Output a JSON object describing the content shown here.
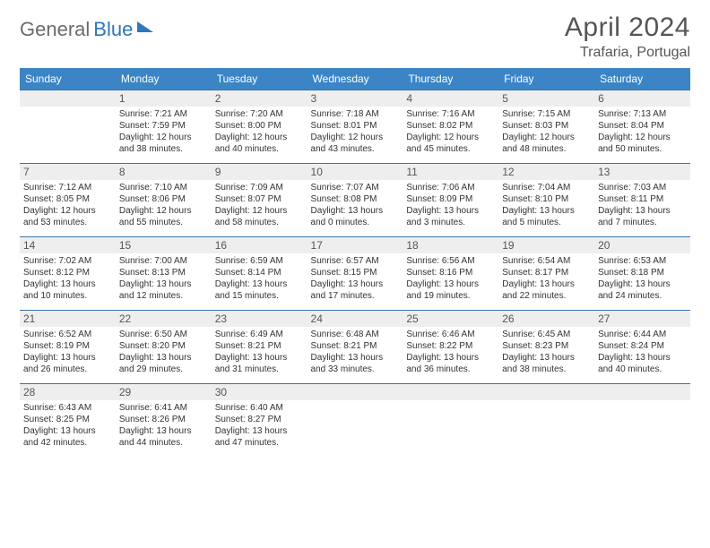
{
  "logo": {
    "part1": "General",
    "part2": "Blue"
  },
  "title": "April 2024",
  "location": "Trafaria, Portugal",
  "weekdays": [
    "Sunday",
    "Monday",
    "Tuesday",
    "Wednesday",
    "Thursday",
    "Friday",
    "Saturday"
  ],
  "colors": {
    "header_bg": "#3b85c6",
    "accent_line": "#3b72a8",
    "daynum_bg": "#eeeeee",
    "text": "#333"
  },
  "weeks": [
    [
      {
        "blank": true
      },
      {
        "n": "1",
        "sr": "7:21 AM",
        "ss": "7:59 PM",
        "d1": "12 hours",
        "d2": "and 38 minutes."
      },
      {
        "n": "2",
        "sr": "7:20 AM",
        "ss": "8:00 PM",
        "d1": "12 hours",
        "d2": "and 40 minutes."
      },
      {
        "n": "3",
        "sr": "7:18 AM",
        "ss": "8:01 PM",
        "d1": "12 hours",
        "d2": "and 43 minutes."
      },
      {
        "n": "4",
        "sr": "7:16 AM",
        "ss": "8:02 PM",
        "d1": "12 hours",
        "d2": "and 45 minutes."
      },
      {
        "n": "5",
        "sr": "7:15 AM",
        "ss": "8:03 PM",
        "d1": "12 hours",
        "d2": "and 48 minutes."
      },
      {
        "n": "6",
        "sr": "7:13 AM",
        "ss": "8:04 PM",
        "d1": "12 hours",
        "d2": "and 50 minutes."
      }
    ],
    [
      {
        "n": "7",
        "sr": "7:12 AM",
        "ss": "8:05 PM",
        "d1": "12 hours",
        "d2": "and 53 minutes."
      },
      {
        "n": "8",
        "sr": "7:10 AM",
        "ss": "8:06 PM",
        "d1": "12 hours",
        "d2": "and 55 minutes."
      },
      {
        "n": "9",
        "sr": "7:09 AM",
        "ss": "8:07 PM",
        "d1": "12 hours",
        "d2": "and 58 minutes."
      },
      {
        "n": "10",
        "sr": "7:07 AM",
        "ss": "8:08 PM",
        "d1": "13 hours",
        "d2": "and 0 minutes."
      },
      {
        "n": "11",
        "sr": "7:06 AM",
        "ss": "8:09 PM",
        "d1": "13 hours",
        "d2": "and 3 minutes."
      },
      {
        "n": "12",
        "sr": "7:04 AM",
        "ss": "8:10 PM",
        "d1": "13 hours",
        "d2": "and 5 minutes."
      },
      {
        "n": "13",
        "sr": "7:03 AM",
        "ss": "8:11 PM",
        "d1": "13 hours",
        "d2": "and 7 minutes."
      }
    ],
    [
      {
        "n": "14",
        "sr": "7:02 AM",
        "ss": "8:12 PM",
        "d1": "13 hours",
        "d2": "and 10 minutes."
      },
      {
        "n": "15",
        "sr": "7:00 AM",
        "ss": "8:13 PM",
        "d1": "13 hours",
        "d2": "and 12 minutes."
      },
      {
        "n": "16",
        "sr": "6:59 AM",
        "ss": "8:14 PM",
        "d1": "13 hours",
        "d2": "and 15 minutes."
      },
      {
        "n": "17",
        "sr": "6:57 AM",
        "ss": "8:15 PM",
        "d1": "13 hours",
        "d2": "and 17 minutes."
      },
      {
        "n": "18",
        "sr": "6:56 AM",
        "ss": "8:16 PM",
        "d1": "13 hours",
        "d2": "and 19 minutes."
      },
      {
        "n": "19",
        "sr": "6:54 AM",
        "ss": "8:17 PM",
        "d1": "13 hours",
        "d2": "and 22 minutes."
      },
      {
        "n": "20",
        "sr": "6:53 AM",
        "ss": "8:18 PM",
        "d1": "13 hours",
        "d2": "and 24 minutes."
      }
    ],
    [
      {
        "n": "21",
        "sr": "6:52 AM",
        "ss": "8:19 PM",
        "d1": "13 hours",
        "d2": "and 26 minutes."
      },
      {
        "n": "22",
        "sr": "6:50 AM",
        "ss": "8:20 PM",
        "d1": "13 hours",
        "d2": "and 29 minutes."
      },
      {
        "n": "23",
        "sr": "6:49 AM",
        "ss": "8:21 PM",
        "d1": "13 hours",
        "d2": "and 31 minutes."
      },
      {
        "n": "24",
        "sr": "6:48 AM",
        "ss": "8:21 PM",
        "d1": "13 hours",
        "d2": "and 33 minutes."
      },
      {
        "n": "25",
        "sr": "6:46 AM",
        "ss": "8:22 PM",
        "d1": "13 hours",
        "d2": "and 36 minutes."
      },
      {
        "n": "26",
        "sr": "6:45 AM",
        "ss": "8:23 PM",
        "d1": "13 hours",
        "d2": "and 38 minutes."
      },
      {
        "n": "27",
        "sr": "6:44 AM",
        "ss": "8:24 PM",
        "d1": "13 hours",
        "d2": "and 40 minutes."
      }
    ],
    [
      {
        "n": "28",
        "sr": "6:43 AM",
        "ss": "8:25 PM",
        "d1": "13 hours",
        "d2": "and 42 minutes."
      },
      {
        "n": "29",
        "sr": "6:41 AM",
        "ss": "8:26 PM",
        "d1": "13 hours",
        "d2": "and 44 minutes."
      },
      {
        "n": "30",
        "sr": "6:40 AM",
        "ss": "8:27 PM",
        "d1": "13 hours",
        "d2": "and 47 minutes."
      },
      {
        "blank": true
      },
      {
        "blank": true
      },
      {
        "blank": true
      },
      {
        "blank": true
      }
    ]
  ],
  "labels": {
    "sunrise": "Sunrise:",
    "sunset": "Sunset:",
    "daylight": "Daylight:"
  }
}
